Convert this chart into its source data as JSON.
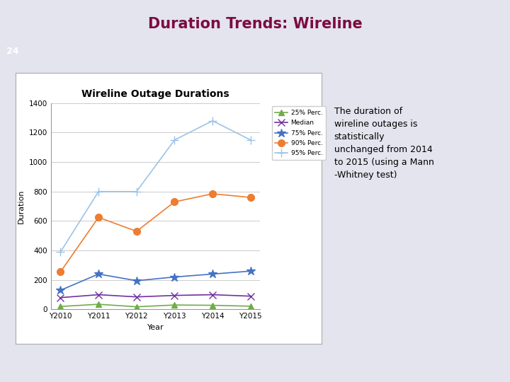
{
  "title_main": "Duration Trends: Wireline",
  "title_main_color": "#7B0C42",
  "chart_title": "Wireline Outage Durations",
  "xlabel": "Year",
  "ylabel": "Duration",
  "background_color": "#E4E4EE",
  "chart_bg_color": "#FFFFFF",
  "years": [
    "Y2010",
    "Y2011",
    "Y2012",
    "Y2013",
    "Y2014",
    "Y2015"
  ],
  "series": {
    "25% Perc.": {
      "values": [
        20,
        35,
        18,
        30,
        28,
        22
      ],
      "color": "#70AD47",
      "marker": "^",
      "markersize": 6
    },
    "Median": {
      "values": [
        80,
        100,
        85,
        95,
        100,
        90
      ],
      "color": "#7030A0",
      "marker": "x",
      "markersize": 7
    },
    "75% Perc.": {
      "values": [
        130,
        240,
        195,
        220,
        240,
        260
      ],
      "color": "#4472C4",
      "marker": "*",
      "markersize": 9
    },
    "90% Perc.": {
      "values": [
        255,
        625,
        530,
        730,
        785,
        760
      ],
      "color": "#ED7D31",
      "marker": "o",
      "markersize": 7
    },
    "95% Perc.": {
      "values": [
        390,
        800,
        800,
        1150,
        1280,
        1150
      ],
      "color": "#9DC3E6",
      "marker": "+",
      "markersize": 8
    }
  },
  "ylim": [
    0,
    1400
  ],
  "yticks": [
    0,
    200,
    400,
    600,
    800,
    1000,
    1200,
    1400
  ],
  "slide_number": "24",
  "slide_num_bg": "#6B6B4A",
  "header_bar_color": "#4B3869",
  "annotation_text": "The duration of\nwireline outages is\nstatistically\nunchanged from 2014\nto 2015 (using a Mann\n-Whitney test)"
}
